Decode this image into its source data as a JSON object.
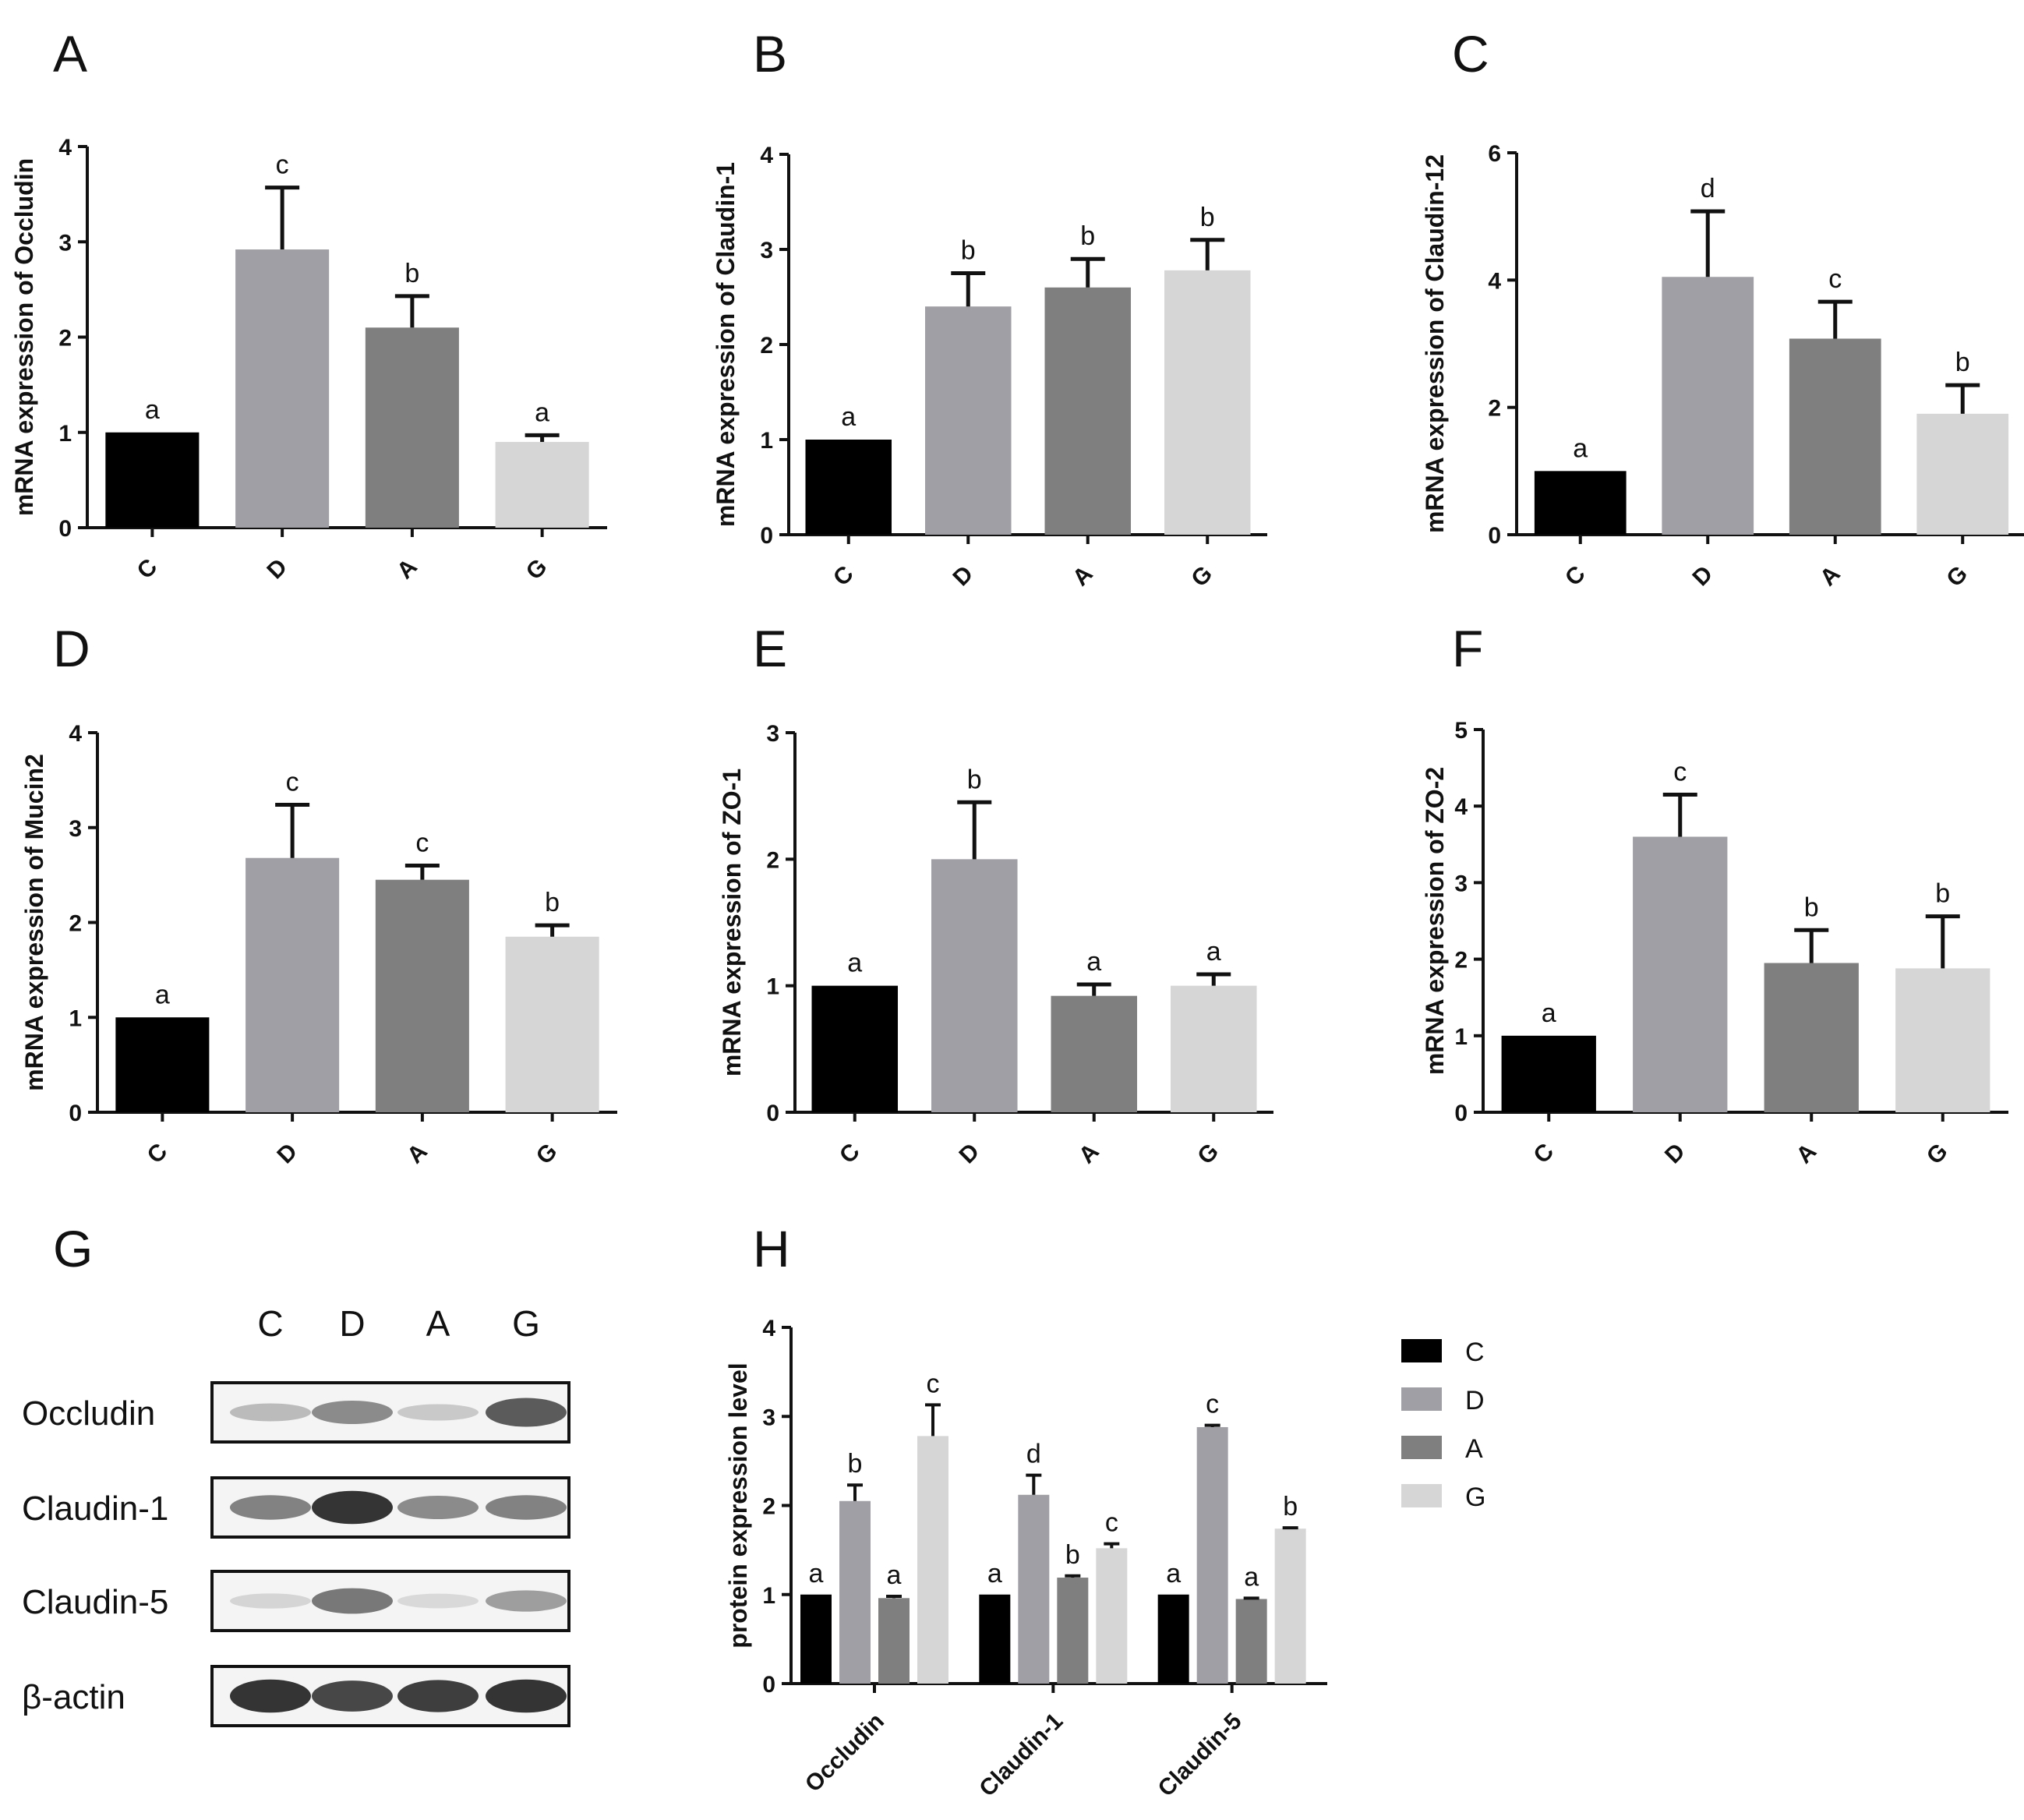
{
  "panels": [
    {
      "letter": "A",
      "chart_data": {
        "type": "bar",
        "categories": [
          "C",
          "D",
          "A",
          "G"
        ],
        "values": [
          1.0,
          2.92,
          2.1,
          0.9
        ],
        "errors": [
          0,
          0.65,
          0.33,
          0.07
        ],
        "significance": [
          "a",
          "c",
          "b",
          "a"
        ],
        "ylabel": "mRNA expression of Occludin",
        "xlabel": "",
        "ylim": [
          0,
          4
        ],
        "yticks": [
          "0",
          "1",
          "2",
          "3",
          "4"
        ]
      }
    },
    {
      "letter": "B",
      "chart_data": {
        "type": "bar",
        "categories": [
          "C",
          "D",
          "A",
          "G"
        ],
        "values": [
          1.0,
          2.4,
          2.6,
          2.78
        ],
        "errors": [
          0,
          0.35,
          0.3,
          0.32
        ],
        "significance": [
          "a",
          "b",
          "b",
          "b"
        ],
        "ylabel": "mRNA expression of Claudin-1",
        "xlabel": "",
        "ylim": [
          0,
          4
        ],
        "yticks": [
          "0",
          "1",
          "2",
          "3",
          "4"
        ]
      }
    },
    {
      "letter": "C",
      "chart_data": {
        "type": "bar",
        "categories": [
          "C",
          "D",
          "A",
          "G"
        ],
        "values": [
          1.0,
          4.05,
          3.08,
          1.9
        ],
        "errors": [
          0,
          1.03,
          0.58,
          0.45
        ],
        "significance": [
          "a",
          "d",
          "c",
          "b"
        ],
        "ylabel": "mRNA expression of Claudin-12",
        "xlabel": "",
        "ylim": [
          0,
          6
        ],
        "yticks": [
          "0",
          "2",
          "4",
          "6"
        ]
      }
    },
    {
      "letter": "D",
      "chart_data": {
        "type": "bar",
        "categories": [
          "C",
          "D",
          "A",
          "G"
        ],
        "values": [
          1.0,
          2.68,
          2.45,
          1.85
        ],
        "errors": [
          0,
          0.56,
          0.15,
          0.12
        ],
        "significance": [
          "a",
          "c",
          "c",
          "b"
        ],
        "ylabel": "mRNA expression of Mucin2",
        "xlabel": "",
        "ylim": [
          0,
          4
        ],
        "yticks": [
          "0",
          "1",
          "2",
          "3",
          "4"
        ]
      }
    },
    {
      "letter": "E",
      "chart_data": {
        "type": "bar",
        "categories": [
          "C",
          "D",
          "A",
          "G"
        ],
        "values": [
          1.0,
          2.0,
          0.92,
          1.0
        ],
        "errors": [
          0,
          0.45,
          0.09,
          0.09
        ],
        "significance": [
          "a",
          "b",
          "a",
          "a"
        ],
        "ylabel": "mRNA expression of ZO-1",
        "xlabel": "",
        "ylim": [
          0,
          3
        ],
        "yticks": [
          "0",
          "1",
          "2",
          "3"
        ]
      }
    },
    {
      "letter": "F",
      "chart_data": {
        "type": "bar",
        "categories": [
          "C",
          "D",
          "A",
          "G"
        ],
        "values": [
          1.0,
          3.6,
          1.95,
          1.88
        ],
        "errors": [
          0,
          0.55,
          0.43,
          0.68
        ],
        "significance": [
          "a",
          "c",
          "b",
          "b"
        ],
        "ylabel": "mRNA expression of ZO-2",
        "xlabel": "",
        "ylim": [
          0,
          5
        ],
        "yticks": [
          "0",
          "1",
          "2",
          "3",
          "4",
          "5"
        ]
      }
    }
  ],
  "western_blot": {
    "letter": "G",
    "lanes": [
      "C",
      "D",
      "A",
      "G"
    ],
    "rows": [
      {
        "label": "Occludin",
        "intensity": [
          0.25,
          0.5,
          0.18,
          0.75
        ]
      },
      {
        "label": "Claudin-1",
        "intensity": [
          0.55,
          0.95,
          0.5,
          0.55
        ]
      },
      {
        "label": "Claudin-5",
        "intensity": [
          0.12,
          0.6,
          0.1,
          0.4
        ]
      },
      {
        "label": "β-actin",
        "intensity": [
          0.95,
          0.85,
          0.9,
          0.95
        ]
      }
    ]
  },
  "protein_chart": {
    "letter": "H",
    "chart_data": {
      "type": "bar",
      "categories": [
        "Occludin",
        "Claudin-1",
        "Claudin-5"
      ],
      "series": [
        {
          "name": "C",
          "values": [
            1.0,
            1.0,
            1.0
          ],
          "errors": [
            0,
            0,
            0
          ],
          "significance": [
            "a",
            "a",
            "a"
          ]
        },
        {
          "name": "D",
          "values": [
            2.05,
            2.12,
            2.88
          ],
          "errors": [
            0.18,
            0.22,
            0.02
          ],
          "significance": [
            "b",
            "d",
            "c"
          ]
        },
        {
          "name": "A",
          "values": [
            0.96,
            1.19,
            0.95
          ],
          "errors": [
            0.02,
            0.02,
            0.01
          ],
          "significance": [
            "a",
            "b",
            "a"
          ]
        },
        {
          "name": "G",
          "values": [
            2.78,
            1.52,
            1.74
          ],
          "errors": [
            0.35,
            0.05,
            0.01
          ],
          "significance": [
            "c",
            "c",
            "b"
          ]
        }
      ],
      "ylabel": "protein expression level",
      "xlabel": "",
      "ylim": [
        0,
        4
      ],
      "yticks": [
        "0",
        "1",
        "2",
        "3",
        "4"
      ],
      "legend_position": "right"
    }
  },
  "colors": {
    "C": "#000000",
    "D": "#a09fa5",
    "A": "#7f7f7f",
    "G": "#d6d6d6",
    "axis": "#111111"
  }
}
